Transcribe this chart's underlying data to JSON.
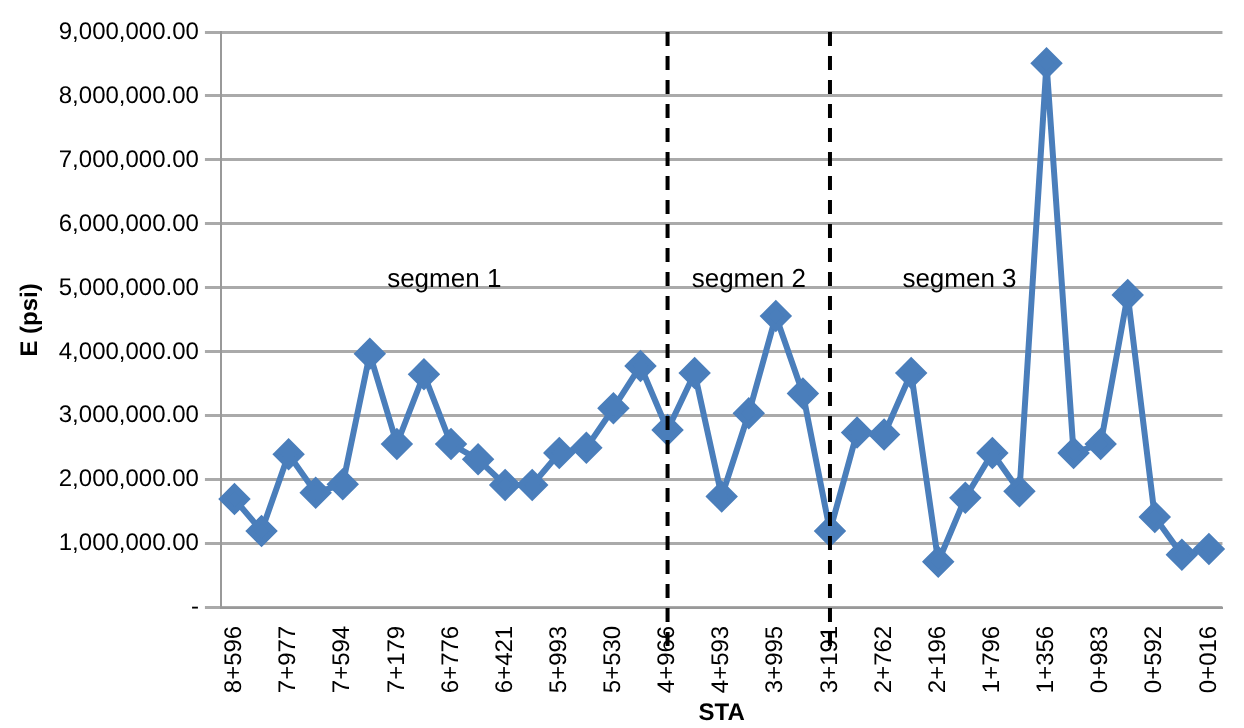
{
  "chart_data": {
    "type": "line",
    "xlabel": "STA",
    "ylabel": "E (psi)",
    "categories": [
      "8+596",
      null,
      "7+977",
      null,
      "7+594",
      null,
      "7+179",
      null,
      "6+776",
      null,
      "6+421",
      null,
      "5+993",
      null,
      "5+530",
      null,
      "4+966",
      null,
      "4+593",
      null,
      "3+995",
      null,
      "3+191",
      null,
      "2+762",
      null,
      "2+196",
      null,
      "1+796",
      null,
      "1+356",
      null,
      "0+983",
      null,
      "0+592",
      null,
      "0+016"
    ],
    "series": [
      {
        "color": "#4a7ebb",
        "values": [
          1700000,
          1200000,
          2400000,
          1800000,
          1930000,
          3970000,
          2560000,
          3650000,
          2560000,
          2320000,
          1920000,
          1920000,
          2420000,
          2500000,
          3120000,
          3780000,
          2780000,
          3670000,
          1740000,
          3040000,
          4560000,
          3350000,
          1200000,
          2740000,
          2710000,
          3670000,
          720000,
          1720000,
          2420000,
          1820000,
          8510000,
          2420000,
          2560000,
          4890000,
          1420000,
          830000,
          920000
        ]
      }
    ],
    "ylim": [
      0,
      9000000
    ],
    "yticks": [
      {
        "value": 0,
        "label": "-"
      },
      {
        "value": 1000000,
        "label": "1,000,000.00"
      },
      {
        "value": 2000000,
        "label": "2,000,000.00"
      },
      {
        "value": 3000000,
        "label": "3,000,000.00"
      },
      {
        "value": 4000000,
        "label": "4,000,000.00"
      },
      {
        "value": 5000000,
        "label": "5,000,000.00"
      },
      {
        "value": 6000000,
        "label": "6,000,000.00"
      },
      {
        "value": 7000000,
        "label": "7,000,000.00"
      },
      {
        "value": 8000000,
        "label": "8,000,000.00"
      },
      {
        "value": 9000000,
        "label": "9,000,000.00"
      }
    ],
    "ref_lines": [
      {
        "axis": "x",
        "value": "4+966",
        "color": "#000000",
        "line_style": "dashed"
      },
      {
        "axis": "x",
        "value": "3+191",
        "color": "#000000",
        "line_style": "dashed"
      }
    ],
    "annotations": [
      "segmen 1",
      "segmen 2",
      "segmen 3"
    ],
    "grid": "y",
    "marker": "diamond",
    "line_style": "solid",
    "legend": false
  }
}
